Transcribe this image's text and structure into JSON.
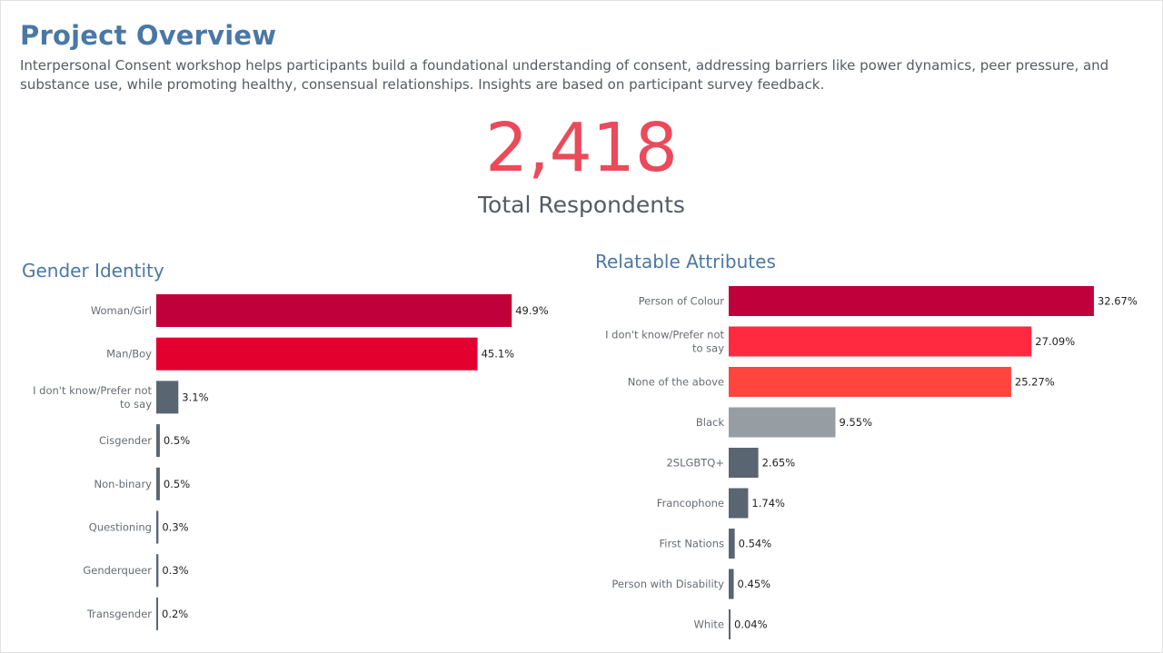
{
  "header": {
    "title": "Project Overview",
    "description": "Interpersonal Consent workshop helps participants build a foundational understanding of consent, addressing barriers like power dynamics, peer pressure, and substance use, while promoting healthy, consensual relationships. Insights are based on participant survey feedback."
  },
  "kpi": {
    "value": "2,418",
    "label": "Total Respondents"
  },
  "colors": {
    "title": "#4a78a6",
    "kpi": "#ea4a5a",
    "bar_dark_red": "#c0003a",
    "bar_red": "#e3002f",
    "bar_bright_red": "#ff2940",
    "bar_coral": "#ff453d",
    "bar_gray": "#979ea3",
    "bar_slate": "#5a6572"
  },
  "chart_data": [
    {
      "type": "bar",
      "orientation": "horizontal",
      "title": "Gender Identity",
      "categories": [
        "Woman/Girl",
        "Man/Boy",
        "I don't know/Prefer not to say",
        "Cisgender",
        "Non-binary",
        "Questioning",
        "Genderqueer",
        "Transgender"
      ],
      "values": [
        49.9,
        45.1,
        3.1,
        0.5,
        0.5,
        0.3,
        0.3,
        0.2
      ],
      "labels": [
        "49.9%",
        "45.1%",
        "3.1%",
        "0.5%",
        "0.5%",
        "0.3%",
        "0.3%",
        "0.2%"
      ],
      "colors": [
        "#c0003a",
        "#e3002f",
        "#5a6572",
        "#5a6572",
        "#5a6572",
        "#5a6572",
        "#5a6572",
        "#5a6572"
      ],
      "unit": "%",
      "xlim": [
        0,
        50
      ]
    },
    {
      "type": "bar",
      "orientation": "horizontal",
      "title": "Relatable Attributes",
      "categories": [
        "Person of Colour",
        "I don't know/Prefer not to say",
        "None of the above",
        "Black",
        "2SLGBTQ+",
        "Francophone",
        "First Nations",
        "Person with Disability",
        "White"
      ],
      "values": [
        32.67,
        27.09,
        25.27,
        9.55,
        2.65,
        1.74,
        0.54,
        0.45,
        0.04
      ],
      "labels": [
        "32.67%",
        "27.09%",
        "25.27%",
        "9.55%",
        "2.65%",
        "1.74%",
        "0.54%",
        "0.45%",
        "0.04%"
      ],
      "colors": [
        "#c0003a",
        "#ff2940",
        "#ff453d",
        "#979ea3",
        "#5a6572",
        "#5a6572",
        "#5a6572",
        "#5a6572",
        "#5a6572"
      ],
      "unit": "%",
      "xlim": [
        0,
        33
      ]
    }
  ]
}
